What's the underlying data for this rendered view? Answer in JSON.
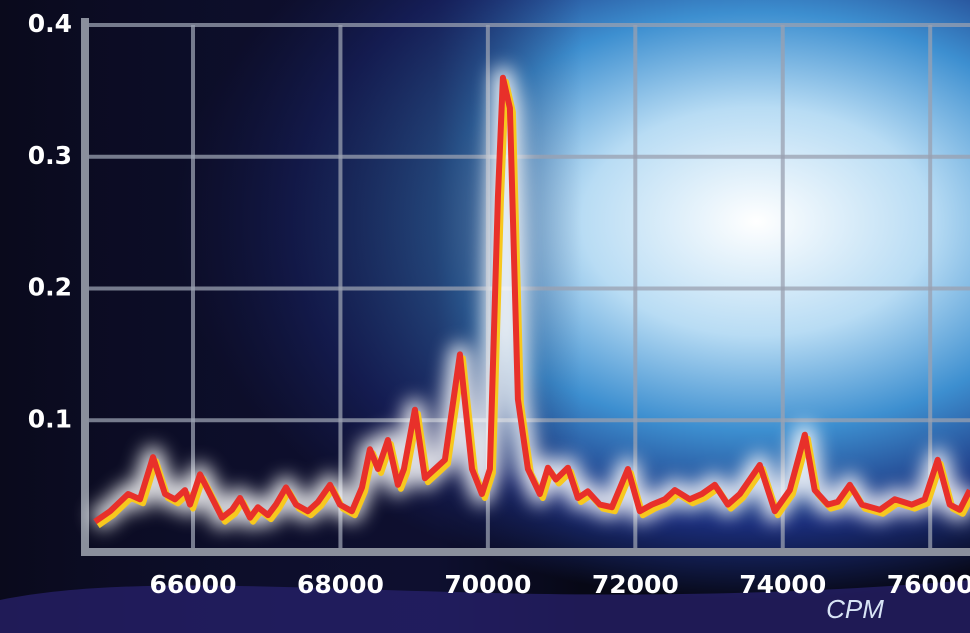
{
  "chart_data": {
    "type": "line",
    "x_label": "CPM",
    "x": [
      64671,
      64875,
      65119,
      65281,
      65458,
      65620,
      65756,
      65892,
      65959,
      66095,
      66231,
      66393,
      66529,
      66637,
      66773,
      66881,
      67017,
      67125,
      67261,
      67397,
      67559,
      67695,
      67858,
      67993,
      68156,
      68292,
      68400,
      68509,
      68644,
      68780,
      68861,
      69010,
      69146,
      69282,
      69417,
      69621,
      69784,
      69919,
      70027,
      70136,
      70204,
      70299,
      70407,
      70543,
      70705,
      70814,
      70922,
      71085,
      71221,
      71356,
      71519,
      71682,
      71899,
      72061,
      72224,
      72400,
      72536,
      72739,
      72902,
      73078,
      73255,
      73417,
      73689,
      73892,
      74095,
      74299,
      74434,
      74611,
      74746,
      74909,
      75072,
      75316,
      75519,
      75750,
      75926,
      76102,
      76265,
      76401,
      76537
    ],
    "series": [
      {
        "color": "#e8302a",
        "shadow_color": "#f7c81e",
        "values": [
          0.023,
          0.031,
          0.044,
          0.04,
          0.072,
          0.044,
          0.04,
          0.047,
          0.036,
          0.059,
          0.044,
          0.026,
          0.032,
          0.041,
          0.026,
          0.034,
          0.028,
          0.036,
          0.049,
          0.036,
          0.031,
          0.038,
          0.051,
          0.036,
          0.031,
          0.049,
          0.078,
          0.063,
          0.085,
          0.051,
          0.063,
          0.108,
          0.056,
          0.063,
          0.07,
          0.15,
          0.063,
          0.044,
          0.063,
          0.269,
          0.36,
          0.337,
          0.116,
          0.063,
          0.044,
          0.064,
          0.055,
          0.064,
          0.041,
          0.046,
          0.036,
          0.034,
          0.063,
          0.031,
          0.036,
          0.04,
          0.047,
          0.04,
          0.044,
          0.051,
          0.036,
          0.044,
          0.066,
          0.031,
          0.047,
          0.089,
          0.047,
          0.036,
          0.038,
          0.051,
          0.036,
          0.032,
          0.04,
          0.036,
          0.04,
          0.07,
          0.036,
          0.032,
          0.047
        ]
      }
    ],
    "xlim": [
      64535,
      76540
    ],
    "xticks": [
      66000,
      68000,
      70000,
      72000,
      74000,
      76000
    ],
    "ylim": [
      0,
      0.4
    ],
    "yticks": [
      0.1,
      0.2,
      0.3,
      0.4
    ],
    "grid": true
  }
}
